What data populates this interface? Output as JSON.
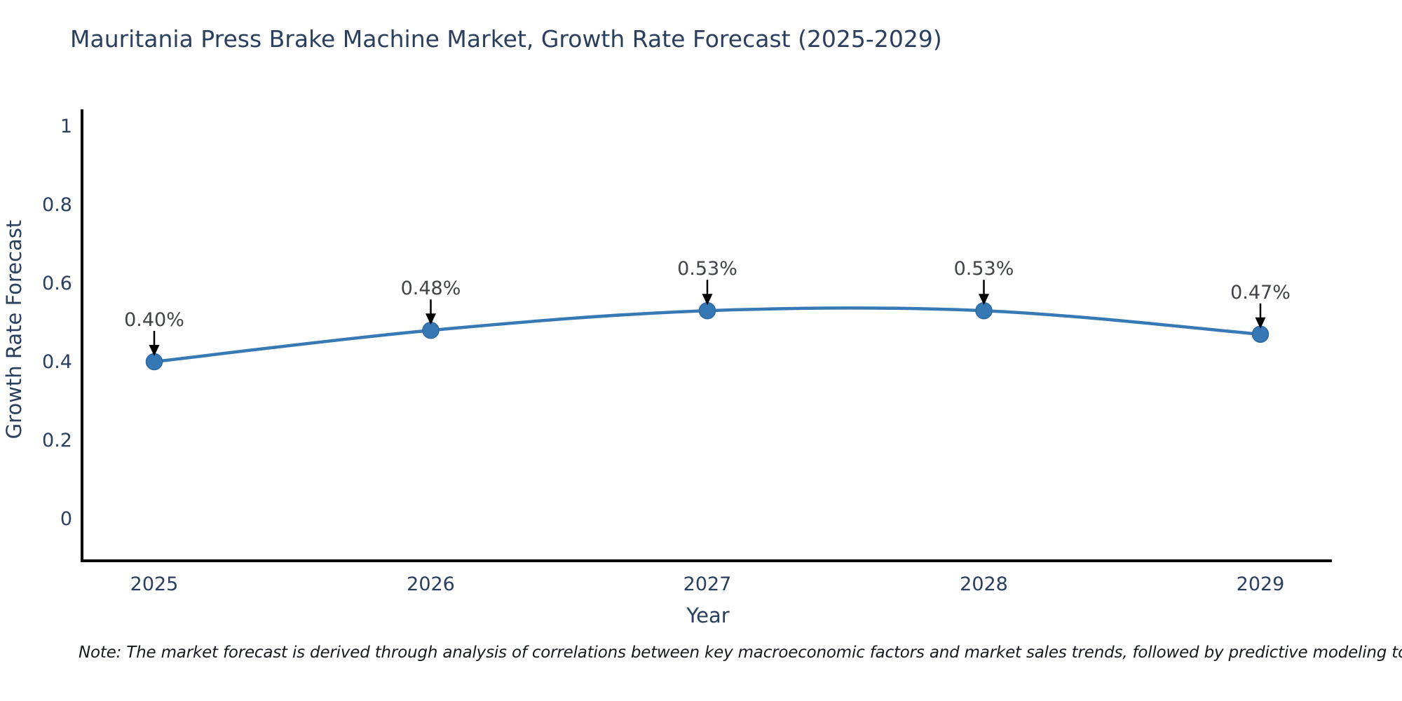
{
  "title": "Mauritania Press Brake Machine Market, Growth Rate Forecast (2025-2029)",
  "note": "Note: The market forecast is derived through analysis of correlations between key macroeconomic factors and market sales trends, followed by predictive modeling to project future sales",
  "chart_data": {
    "type": "line",
    "title": "Mauritania Press Brake Machine Market, Growth Rate Forecast (2025-2029)",
    "xlabel": "Year",
    "ylabel": "Growth Rate Forecast",
    "x": [
      "2025",
      "2026",
      "2027",
      "2028",
      "2029"
    ],
    "values": [
      0.4,
      0.48,
      0.53,
      0.53,
      0.47
    ],
    "point_labels": [
      "0.40%",
      "0.48%",
      "0.53%",
      "0.53%",
      "0.47%"
    ],
    "yticks": [
      0,
      0.2,
      0.4,
      0.6,
      0.8,
      1
    ],
    "ytick_labels": [
      "0",
      "0.2",
      "0.4",
      "0.6",
      "0.8",
      "1"
    ],
    "ylim": [
      -0.11,
      1.04
    ],
    "grid": false,
    "legend": false,
    "line_smooth": true,
    "annotation_arrows": true,
    "colors": {
      "line": "#3679b5",
      "marker": "#3678b4",
      "marker_edge": "#2d68a3",
      "axis": "#000000",
      "arrow": "#000000",
      "title_text": "#2a3f5f",
      "tick_text": "#2a3f5f",
      "data_label_text": "#404347",
      "note_text": "#16191d",
      "background": "#ffffff"
    }
  }
}
